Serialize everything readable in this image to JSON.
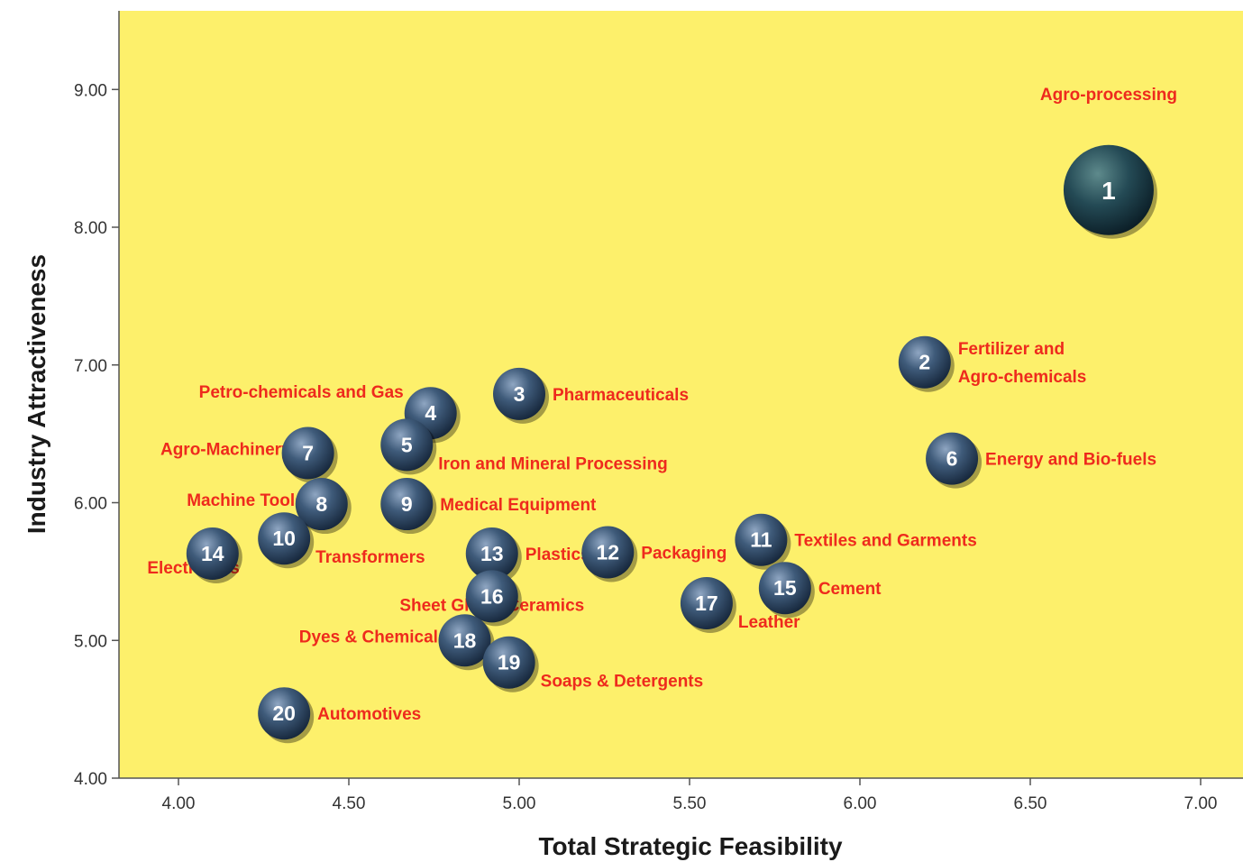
{
  "chart_data": {
    "type": "scatter",
    "title": "",
    "xlabel": "Total Strategic Feasibility",
    "ylabel": "Industry Attractiveness",
    "xlim": [
      3.85,
      7.05
    ],
    "ylim": [
      4.0,
      9.55
    ],
    "x_ticks": [
      4.0,
      4.5,
      5.0,
      5.5,
      6.0,
      6.5,
      7.0
    ],
    "x_tick_labels": [
      "4.00",
      "4.50",
      "5.00",
      "5.50",
      "6.00",
      "6.50",
      "7.00"
    ],
    "y_ticks": [
      4.0,
      5.0,
      6.0,
      7.0,
      8.0,
      9.0
    ],
    "y_tick_labels": [
      "4.00",
      "5.00",
      "6.00",
      "7.00",
      "8.00",
      "9.00"
    ],
    "grid": false,
    "legend": "none",
    "plot_background": "#fdf06b",
    "bubble_color": "#3f5b7a",
    "label_color": "#ee2a1d",
    "points": [
      {
        "id": "1",
        "label": "Agro-processing",
        "x": 6.73,
        "y": 8.27,
        "size": 2.2,
        "label_pos": "above",
        "label_lines": [
          "Agro-processing"
        ]
      },
      {
        "id": "2",
        "label": "Fertilizer and Agro-chemicals",
        "x": 6.19,
        "y": 7.02,
        "size": 1.0,
        "label_pos": "right",
        "label_lines": [
          "Fertilizer and",
          "Agro-chemicals"
        ]
      },
      {
        "id": "3",
        "label": "Pharmaceuticals",
        "x": 5.0,
        "y": 6.79,
        "size": 1.0,
        "label_pos": "right",
        "label_lines": [
          "Pharmaceuticals"
        ]
      },
      {
        "id": "4",
        "label": "Petro-chemicals and Gas",
        "x": 4.74,
        "y": 6.65,
        "size": 1.0,
        "label_pos": "upper-left",
        "label_lines": [
          "Petro-chemicals and Gas"
        ]
      },
      {
        "id": "5",
        "label": "Iron and Mineral Processing",
        "x": 4.67,
        "y": 6.42,
        "size": 1.0,
        "label_pos": "lower-right",
        "label_lines": [
          "Iron and Mineral Processing"
        ]
      },
      {
        "id": "6",
        "label": "Energy and Bio-fuels",
        "x": 6.27,
        "y": 6.32,
        "size": 1.0,
        "label_pos": "right",
        "label_lines": [
          "Energy and Bio-fuels"
        ]
      },
      {
        "id": "7",
        "label": "Agro-Machinery",
        "x": 4.38,
        "y": 6.36,
        "size": 1.0,
        "label_pos": "left",
        "label_lines": [
          "Agro-Machinery"
        ]
      },
      {
        "id": "8",
        "label": "Machine Tools",
        "x": 4.42,
        "y": 5.99,
        "size": 1.0,
        "label_pos": "left",
        "label_lines": [
          "Machine Tools"
        ]
      },
      {
        "id": "9",
        "label": "Medical Equipment",
        "x": 4.67,
        "y": 5.99,
        "size": 1.0,
        "label_pos": "right",
        "label_lines": [
          "Medical Equipment"
        ]
      },
      {
        "id": "10",
        "label": "Transformers",
        "x": 4.31,
        "y": 5.74,
        "size": 1.0,
        "label_pos": "lower-right",
        "label_lines": [
          "Transformers"
        ]
      },
      {
        "id": "11",
        "label": "Textiles and Garments",
        "x": 5.71,
        "y": 5.73,
        "size": 1.0,
        "label_pos": "right",
        "label_lines": [
          "Textiles and Garments"
        ]
      },
      {
        "id": "12",
        "label": "Packaging",
        "x": 5.26,
        "y": 5.64,
        "size": 1.0,
        "label_pos": "right",
        "label_lines": [
          "Packaging"
        ]
      },
      {
        "id": "13",
        "label": "Plastics",
        "x": 4.92,
        "y": 5.63,
        "size": 1.0,
        "label_pos": "right",
        "label_lines": [
          "Plastics"
        ]
      },
      {
        "id": "14",
        "label": "Electronics",
        "x": 4.1,
        "y": 5.63,
        "size": 1.0,
        "label_pos": "lower-left",
        "label_lines": [
          "Electronics"
        ]
      },
      {
        "id": "15",
        "label": "Cement",
        "x": 5.78,
        "y": 5.38,
        "size": 1.0,
        "label_pos": "right",
        "label_lines": [
          "Cement"
        ]
      },
      {
        "id": "16",
        "label": "Sheet Glass/ Ceramics",
        "x": 4.92,
        "y": 5.32,
        "size": 1.0,
        "label_pos": "lower",
        "label_lines": [
          "Sheet Glass/ Ceramics"
        ]
      },
      {
        "id": "17",
        "label": "Leather",
        "x": 5.55,
        "y": 5.27,
        "size": 1.0,
        "label_pos": "lower-right",
        "label_lines": [
          "Leather"
        ]
      },
      {
        "id": "18",
        "label": "Dyes & Chemicals",
        "x": 4.84,
        "y": 5.0,
        "size": 1.0,
        "label_pos": "left",
        "label_lines": [
          "Dyes & Chemicals"
        ]
      },
      {
        "id": "19",
        "label": "Soaps & Detergents",
        "x": 4.97,
        "y": 4.84,
        "size": 1.0,
        "label_pos": "lower-right",
        "label_lines": [
          "Soaps & Detergents"
        ]
      },
      {
        "id": "20",
        "label": "Automotives",
        "x": 4.31,
        "y": 4.47,
        "size": 1.0,
        "label_pos": "right",
        "label_lines": [
          "Automotives"
        ]
      }
    ]
  }
}
